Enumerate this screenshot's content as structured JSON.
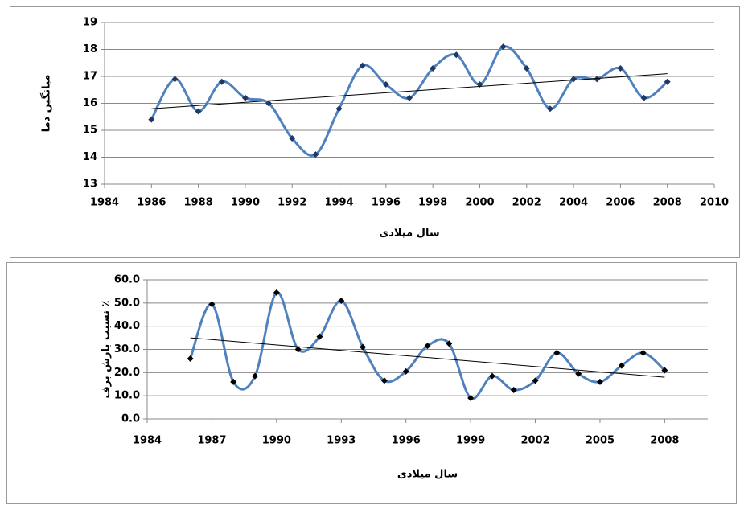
{
  "chart_data": [
    {
      "type": "line",
      "x_label": "سال میلادی",
      "y_label": "میانگین دما",
      "x": [
        1986,
        1987,
        1988,
        1989,
        1990,
        1991,
        1992,
        1993,
        1994,
        1995,
        1996,
        1997,
        1998,
        1999,
        2000,
        2001,
        2002,
        2003,
        2004,
        2005,
        2006,
        2007,
        2008
      ],
      "series": [
        {
          "color": "#4f81bd",
          "marker_color": "#1f3864",
          "values": [
            15.4,
            16.9,
            15.7,
            16.8,
            16.2,
            16.0,
            14.7,
            14.1,
            15.8,
            17.4,
            16.7,
            16.2,
            17.3,
            17.8,
            16.7,
            18.1,
            17.3,
            15.8,
            16.9,
            16.9,
            17.3,
            16.2,
            16.8
          ]
        }
      ],
      "trendline": {
        "x": [
          1986,
          2008
        ],
        "values": [
          15.8,
          17.1
        ],
        "color": "#000000"
      },
      "xlim": [
        1984,
        2010
      ],
      "xticks": [
        1984,
        1986,
        1988,
        1990,
        1992,
        1994,
        1996,
        1998,
        2000,
        2002,
        2004,
        2006,
        2008,
        2010
      ],
      "ylim": [
        13,
        19
      ],
      "yticks": [
        13,
        14,
        15,
        16,
        17,
        18,
        19
      ],
      "grid": true
    },
    {
      "type": "line",
      "x_label": "سال میلادی",
      "y_label": "نسبت بارش برف ٪",
      "x": [
        1986,
        1987,
        1988,
        1989,
        1990,
        1991,
        1992,
        1993,
        1994,
        1995,
        1996,
        1997,
        1998,
        1999,
        2000,
        2001,
        2002,
        2003,
        2004,
        2005,
        2006,
        2007,
        2008
      ],
      "series": [
        {
          "color": "#4f81bd",
          "marker_color": "#000000",
          "values": [
            26,
            49.5,
            16,
            18.5,
            54.5,
            30,
            35.5,
            51,
            31,
            16.5,
            20.5,
            31.5,
            32.5,
            9,
            18.5,
            12.5,
            16.5,
            28.5,
            19.5,
            16,
            23,
            28.5,
            21
          ]
        }
      ],
      "trendline": {
        "x": [
          1986,
          2008
        ],
        "values": [
          35,
          18
        ],
        "color": "#000000"
      },
      "xlim": [
        1984,
        2010
      ],
      "xticks": [
        1984,
        1987,
        1990,
        1993,
        1996,
        1999,
        2002,
        2005,
        2008
      ],
      "ylim": [
        0,
        60
      ],
      "yticks": [
        {
          "value": 0,
          "label": "0.0"
        },
        {
          "value": 10,
          "label": "10.0"
        },
        {
          "value": 20,
          "label": "20.0"
        },
        {
          "value": 30,
          "label": "30.0"
        },
        {
          "value": 40,
          "label": "40.0"
        },
        {
          "value": 50,
          "label": "50.0"
        },
        {
          "value": 60,
          "label": "60.0"
        }
      ],
      "grid": true
    }
  ]
}
